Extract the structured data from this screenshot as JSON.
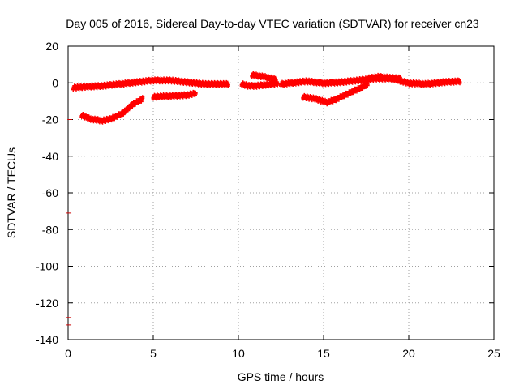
{
  "chart_data": {
    "type": "scatter",
    "title": "Day 005 of 2016, Sidereal Day-to-day VTEC variation (SDTVAR) for receiver cn23",
    "xlabel": "GPS time / hours",
    "ylabel": "SDTVAR / TECUs",
    "xlim": [
      0,
      25
    ],
    "ylim": [
      -140,
      20
    ],
    "x_ticks": [
      0,
      5,
      10,
      15,
      20,
      25
    ],
    "y_ticks": [
      20,
      0,
      -20,
      -40,
      -60,
      -80,
      -100,
      -120,
      -140
    ],
    "grid": true,
    "legend": "none",
    "series_color": "#ff0000",
    "series": [
      {
        "x": [
          0.3,
          1,
          2,
          3,
          4,
          5,
          6,
          7,
          8,
          9,
          9.4
        ],
        "y": [
          -3,
          -2.5,
          -2,
          -1,
          0,
          1,
          1,
          0,
          -1,
          -1,
          -1
        ]
      },
      {
        "x": [
          0.8,
          1.3,
          2,
          2.5,
          3.2,
          3.8,
          4.4
        ],
        "y": [
          -18,
          -20,
          -21,
          -20,
          -17,
          -12,
          -9
        ]
      },
      {
        "x": [
          5,
          6,
          7,
          7.5
        ],
        "y": [
          -8,
          -7.5,
          -7,
          -6
        ]
      },
      {
        "x": [
          10.2,
          10.6,
          11,
          11.5,
          12,
          12.3
        ],
        "y": [
          -1,
          -2,
          -2,
          -1.5,
          -1,
          -0.5
        ]
      },
      {
        "x": [
          10.8,
          11.5,
          12.2
        ],
        "y": [
          4,
          3,
          1.5
        ]
      },
      {
        "x": [
          12.5,
          13,
          14,
          15,
          16,
          17,
          18,
          19,
          20,
          21,
          22,
          23
        ],
        "y": [
          -1,
          -0.5,
          0.5,
          -0.5,
          0,
          1,
          2,
          2,
          -0.5,
          -1,
          0,
          0.5
        ]
      },
      {
        "x": [
          13.8,
          14.5,
          15.2,
          15.8,
          16.5,
          17.2,
          17.6
        ],
        "y": [
          -8,
          -9,
          -11,
          -9,
          -6,
          -3,
          -1
        ]
      },
      {
        "x": [
          17.6,
          18.2,
          18.8,
          19.5
        ],
        "y": [
          2,
          3,
          2.5,
          2
        ]
      }
    ],
    "outliers": {
      "x": [
        0.1,
        0.05,
        0.05,
        0.05
      ],
      "y": [
        -20,
        -71,
        -128,
        -132
      ]
    }
  }
}
